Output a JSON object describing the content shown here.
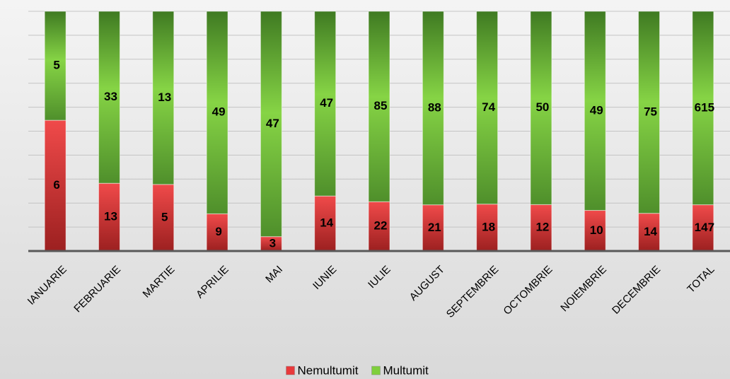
{
  "chart_data": {
    "type": "bar",
    "stacked": "percent",
    "categories": [
      "IANUARIE",
      "FEBRUARIE",
      "MARTIE",
      "APRILIE",
      "MAI",
      "IUNIE",
      "IULIE",
      "AUGUST",
      "SEPTEMBRIE",
      "OCTOMBRIE",
      "NOIEMBRIE",
      "DECEMBRIE",
      "TOTAL"
    ],
    "series": [
      {
        "name": "Nemultumit",
        "color": "#e8393b",
        "values": [
          6,
          13,
          5,
          9,
          3,
          14,
          22,
          21,
          18,
          12,
          10,
          14,
          147
        ]
      },
      {
        "name": "Multumit",
        "color": "#7fcf3c",
        "values": [
          5,
          33,
          13,
          49,
          47,
          47,
          85,
          88,
          74,
          50,
          49,
          75,
          615
        ]
      }
    ],
    "ylim": [
      0,
      100
    ],
    "yticks": [
      0,
      10,
      20,
      30,
      40,
      50,
      60,
      70,
      80,
      90,
      100
    ],
    "grid": true,
    "legend": "bottom"
  }
}
